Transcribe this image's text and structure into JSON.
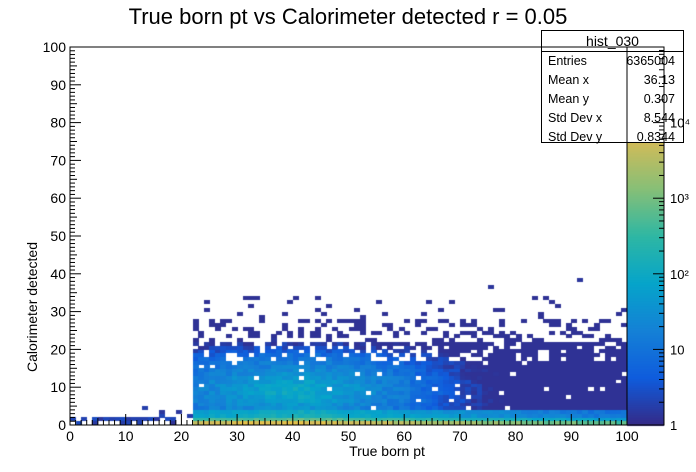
{
  "chart_data": {
    "type": "heatmap",
    "title": "True born pt vs Calorimeter detected r = 0.05",
    "xlabel": "True born pt",
    "ylabel": "Calorimeter detected",
    "xlim": [
      0,
      100
    ],
    "ylim": [
      0,
      100
    ],
    "x_ticks": [
      "0",
      "10",
      "20",
      "30",
      "40",
      "50",
      "60",
      "70",
      "80",
      "90",
      "100"
    ],
    "y_ticks": [
      "0",
      "10",
      "20",
      "30",
      "40",
      "50",
      "60",
      "70",
      "80",
      "90",
      "100"
    ],
    "colorbar": {
      "scale": "log",
      "range": [
        1,
        100000
      ],
      "tick_labels": [
        "1",
        "10",
        "10²",
        "10³",
        "10⁴"
      ],
      "colors": [
        "#352a87",
        "#0f5cdd",
        "#1481d6",
        "#06a4ca",
        "#2eb7a4",
        "#87bf77",
        "#d1bb59",
        "#fec832",
        "#f9fb0e"
      ]
    },
    "stats_box": {
      "name": "hist_030",
      "entries": "6365004",
      "mean_x": "36.13",
      "mean_y": "0.307",
      "std_dev_x": "8.544",
      "std_dev_y": "0.8344"
    },
    "stat_labels": {
      "entries": "Entries",
      "mean_x": "Mean x",
      "mean_y": "Mean y",
      "std_dev_x": "Std Dev x",
      "std_dev_y": "Std Dev y"
    },
    "description_regions": {
      "low_pt_sparse": {
        "x_range": [
          0,
          22
        ],
        "y_range": [
          0,
          3
        ]
      },
      "dense_band": {
        "x_range": [
          22,
          100
        ],
        "y_range": [
          0,
          2
        ]
      },
      "populated_region": {
        "x_range": [
          22,
          100
        ],
        "y_range": [
          0,
          33
        ]
      },
      "outliers": [
        [
          75,
          36
        ],
        [
          91,
          38
        ]
      ]
    }
  }
}
